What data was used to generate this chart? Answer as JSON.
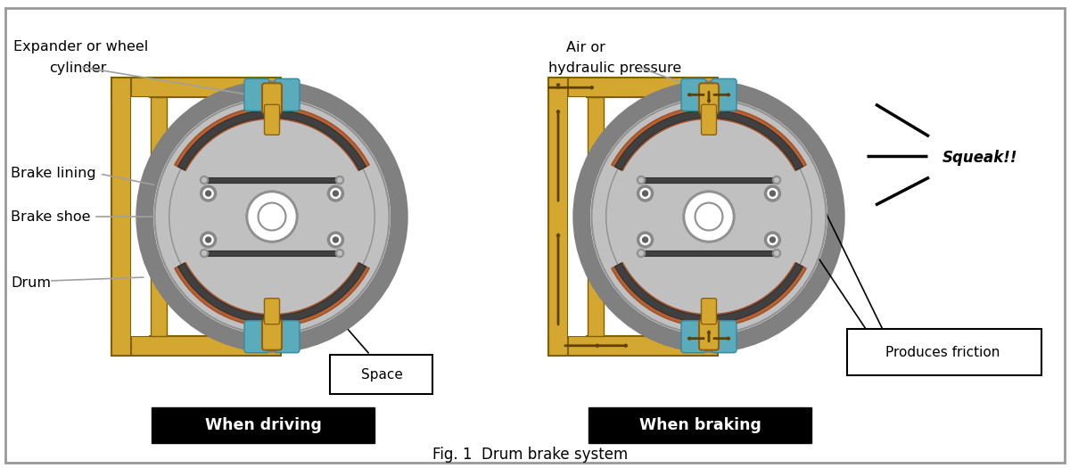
{
  "bg_color": "#ffffff",
  "border_color": "#999999",
  "drum_outer_color": "#808080",
  "drum_inner_color": "#c0c0c0",
  "lining_color": "#b86030",
  "shoe_color": "#505050",
  "cylinder_color": "#d4a830",
  "cyan_color": "#5aabbb",
  "frame_color": "#d4a830",
  "frame_border": "#a07010",
  "frame_dark_border": "#806000",
  "arrow_color": "#604000",
  "title": "Fig. 1  Drum brake system",
  "label1_title": "When driving",
  "label2_title": "When braking"
}
